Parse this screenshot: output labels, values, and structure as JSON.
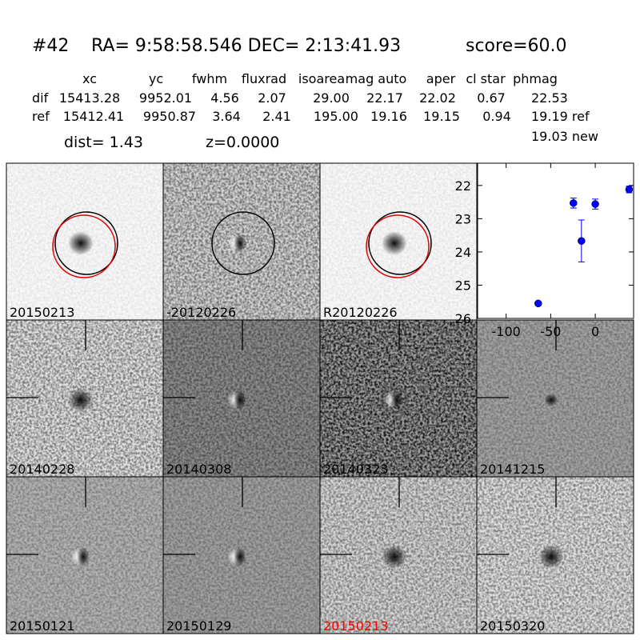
{
  "header": {
    "id": "#42",
    "coords": "RA= 9:58:58.546 DEC= 2:13:41.93",
    "score": "score=60.0"
  },
  "table": {
    "columns": [
      "xc",
      "yc",
      "fwhm",
      "fluxrad",
      "isoarea",
      "mag auto",
      "aper",
      "cl star",
      "phmag"
    ],
    "rows": [
      {
        "label": "dif",
        "cells": [
          "15413.28",
          "9952.01",
          "4.56",
          "2.07",
          "29.00",
          "22.17",
          "22.02",
          "0.67",
          "22.53"
        ]
      },
      {
        "label": "ref",
        "cells": [
          "15412.41",
          "9950.87",
          "3.64",
          "2.41",
          "195.00",
          "19.16",
          "19.15",
          "0.94",
          "19.19 ref"
        ]
      }
    ],
    "extra_phmag": "19.03 new"
  },
  "dist": "dist=  1.43",
  "z": "z=0.0000",
  "panels": [
    {
      "label": "20150213"
    },
    {
      "label": "-20120226"
    },
    {
      "label": "R20120226"
    },
    {
      "label": "20140228"
    },
    {
      "label": "20140308"
    },
    {
      "label": "20140323"
    },
    {
      "label": "20141215"
    },
    {
      "label": "20150121"
    },
    {
      "label": "20150129"
    },
    {
      "label": "20150213",
      "color": "#ff0000"
    },
    {
      "label": "20150320"
    }
  ],
  "chart_data": {
    "type": "scatter",
    "x": [
      -64,
      -24.5,
      -15.5,
      0,
      38
    ],
    "values": [
      25.55,
      22.53,
      23.67,
      22.56,
      22.12
    ],
    "errors": [
      0.05,
      0.15,
      0.63,
      0.15,
      0.1
    ],
    "color": "#0000ff",
    "xlim": [
      -132,
      43
    ],
    "ylim": [
      26,
      21.33
    ],
    "xticks": [
      -100,
      -50,
      0
    ],
    "yticks": [
      22,
      23,
      24,
      25,
      26
    ]
  }
}
